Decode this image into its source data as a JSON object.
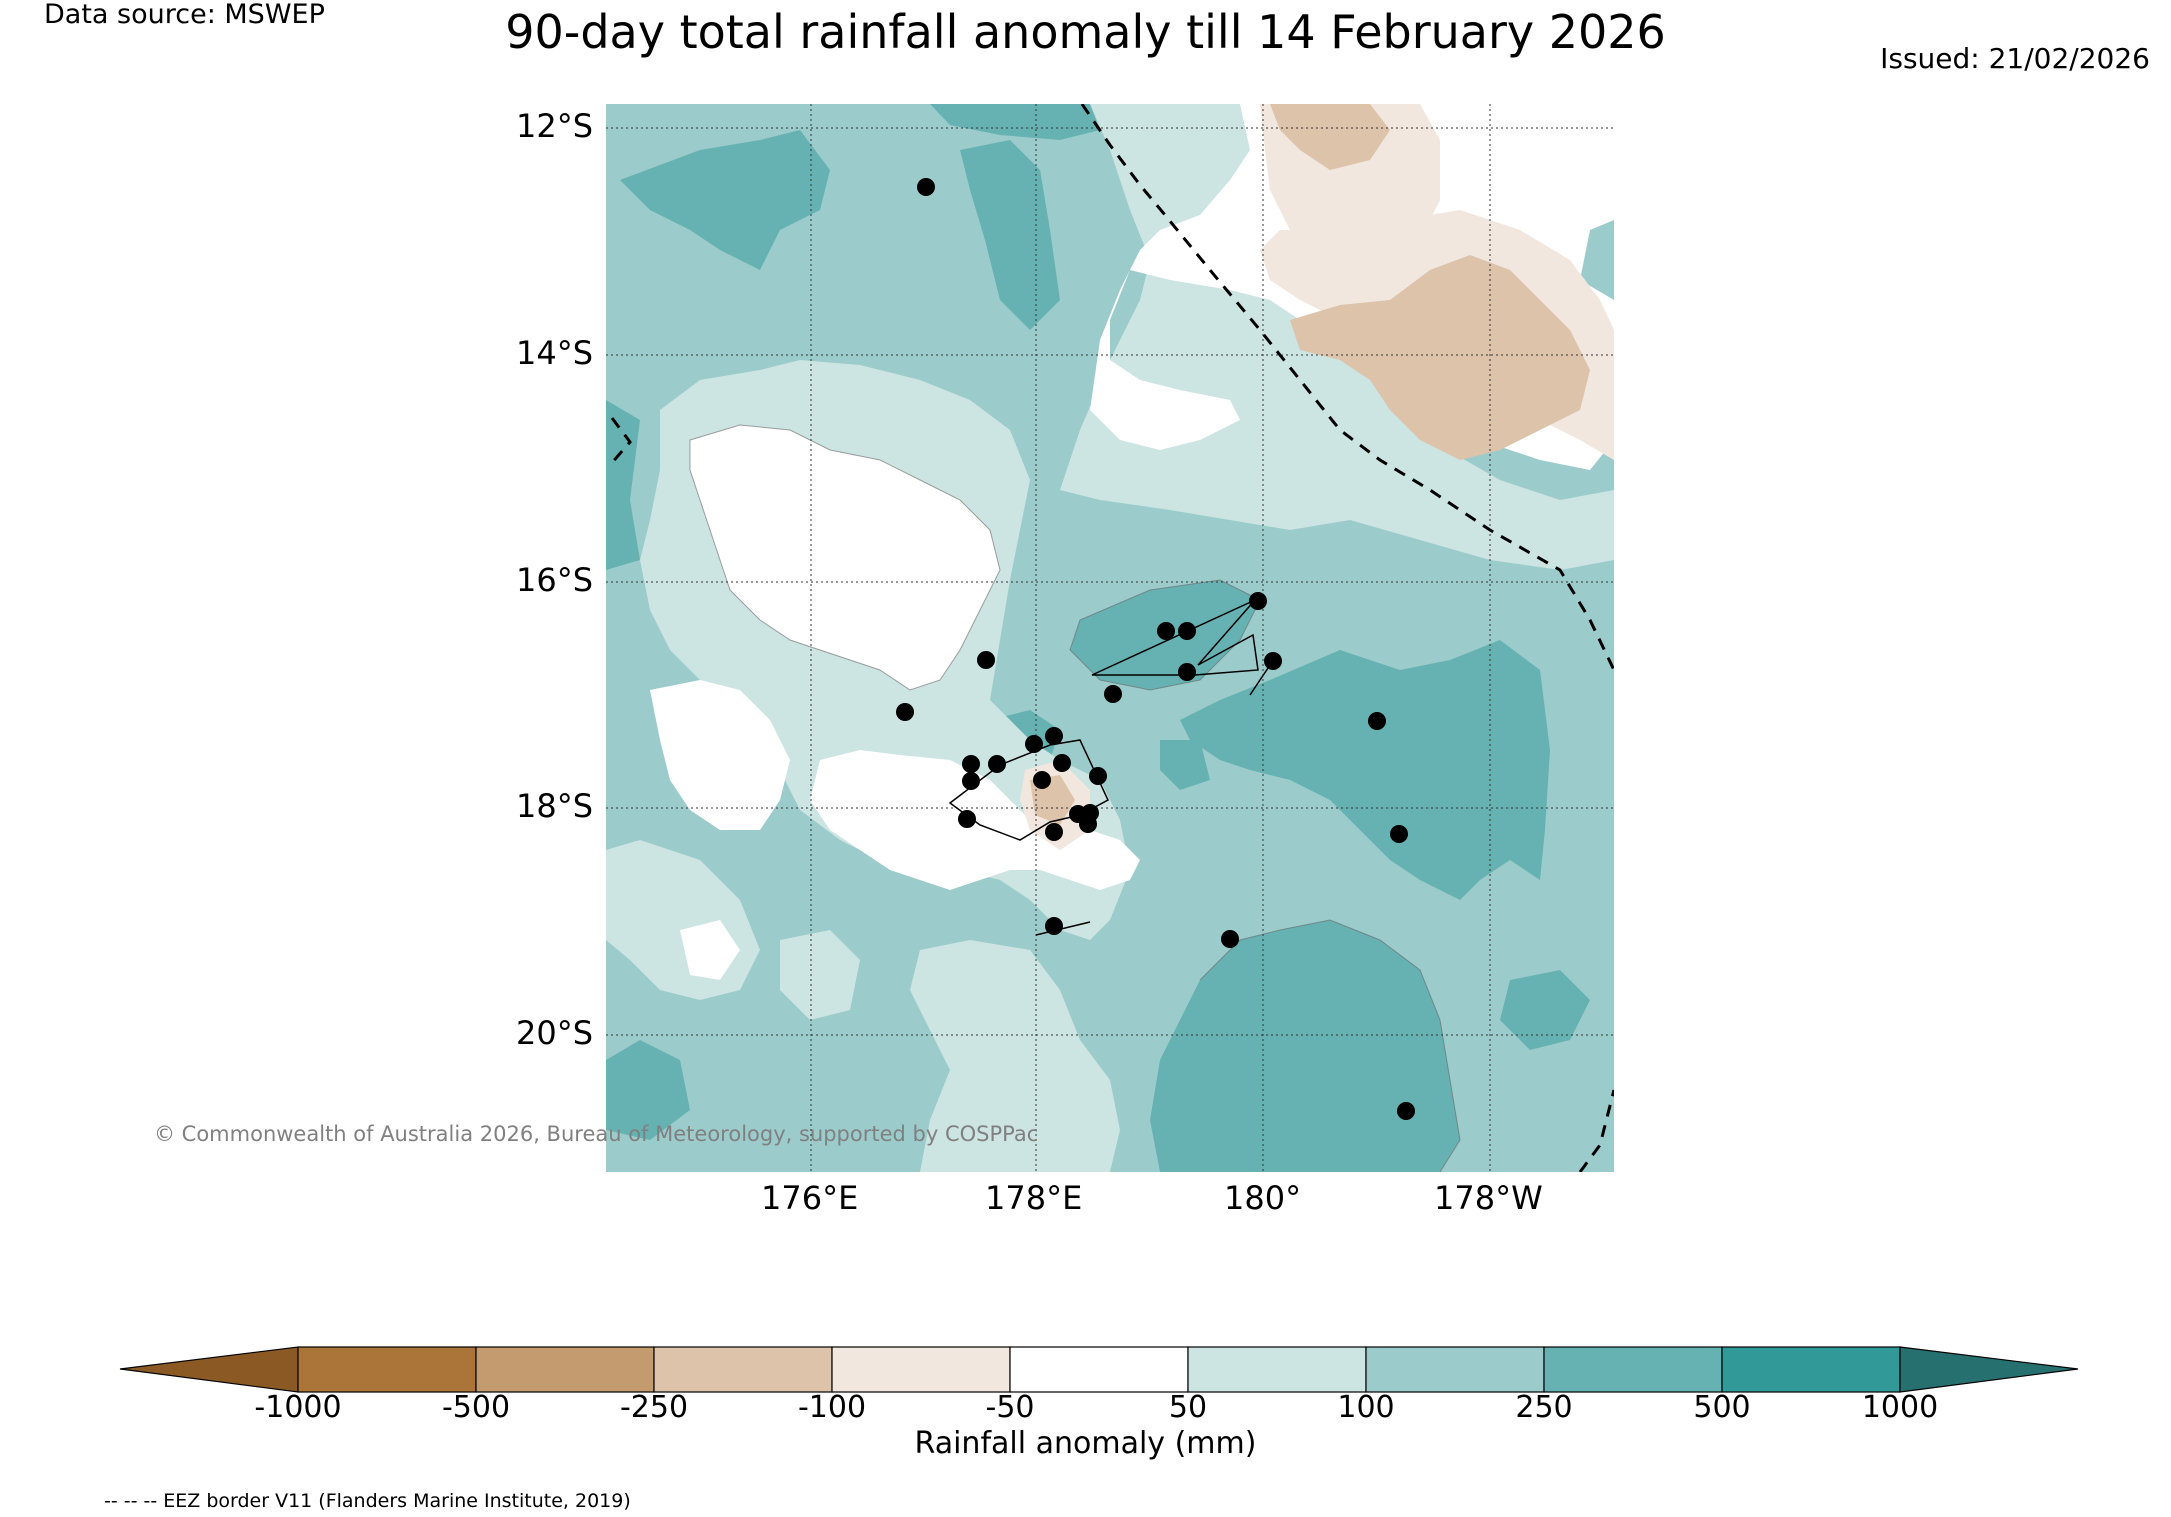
{
  "header": {
    "data_source": "Data source: MSWEP",
    "title": "90-day total rainfall anomaly till 14 February 2026",
    "issued": "Issued: 21/02/2026"
  },
  "map": {
    "lat_labels": [
      "12°S",
      "14°S",
      "16°S",
      "18°S",
      "20°S"
    ],
    "lon_labels": [
      "176°E",
      "178°E",
      "180°",
      "178°W"
    ],
    "copyright": "© Commonwealth of Australia 2026, Bureau of Meteorology, supported by COSPPac",
    "colors": {
      "ocean_base": "#9ccbcb",
      "light_teal": "#cce4e2",
      "mid_teal": "#66b2b2",
      "dark_teal": "#319a98",
      "neutral": "#ffffff",
      "light_tan": "#f1e7de",
      "tan": "#dcc3aa",
      "eez_line": "#000000",
      "station_dot": "#000000"
    }
  },
  "colorbar": {
    "label": "Rainfall anomaly (mm)",
    "ticks": [
      "-1000",
      "-500",
      "-250",
      "-100",
      "-50",
      "50",
      "100",
      "250",
      "500",
      "1000"
    ],
    "colors": [
      "#8b5a24",
      "#ab7439",
      "#c49a6f",
      "#dcc3aa",
      "#f1e7de",
      "#ffffff",
      "#cce4e2",
      "#9ccbcb",
      "#66b2b2",
      "#319a98",
      "#26706f"
    ]
  },
  "footnote": "-- -- -- EEZ border V11 (Flanders Marine Institute, 2019)"
}
